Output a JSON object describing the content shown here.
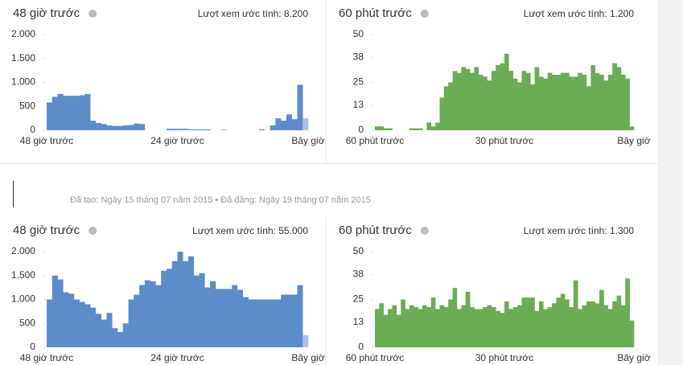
{
  "chart_data": [
    {
      "type": "bar",
      "title": "48 giờ trước",
      "subtitle": "Lượt xem ước tính: 8.200",
      "x_labels": [
        "48 giờ trước",
        "24 giờ trước",
        "Bây giờ"
      ],
      "color": "#5d8ccb",
      "last_color": "#a8c3e8",
      "ylim": [
        0,
        2000
      ],
      "yticks": [
        0,
        500,
        {
          "value": 1000,
          "label": "1.000"
        },
        {
          "value": 1500,
          "label": "1.500"
        },
        {
          "value": 2000,
          "label": "2.000"
        }
      ],
      "values": [
        580,
        700,
        760,
        720,
        720,
        720,
        730,
        760,
        200,
        150,
        130,
        100,
        90,
        90,
        100,
        110,
        140,
        130,
        0,
        0,
        0,
        0,
        30,
        30,
        30,
        30,
        20,
        20,
        20,
        20,
        0,
        0,
        10,
        0,
        0,
        0,
        0,
        0,
        0,
        20,
        0,
        100,
        250,
        200,
        330,
        230,
        950,
        250
      ]
    },
    {
      "type": "bar",
      "title": "60 phút trước",
      "subtitle": "Lượt xem ước tính: 1.200",
      "x_labels": [
        "60 phút trước",
        "30 phút trước",
        "Bây giờ"
      ],
      "color": "#6aad55",
      "ylim": [
        0,
        50
      ],
      "yticks": [
        0,
        13,
        25,
        38,
        50
      ],
      "values": [
        2,
        2,
        1,
        1,
        0,
        0,
        0,
        0,
        1,
        1,
        1,
        0,
        4,
        2,
        4,
        17,
        23,
        25,
        31,
        30,
        33,
        32,
        30,
        33,
        29,
        28,
        26,
        31,
        34,
        35,
        40,
        31,
        27,
        25,
        31,
        30,
        24,
        33,
        28,
        27,
        30,
        29,
        29,
        30,
        30,
        28,
        28,
        30,
        29,
        23,
        34,
        30,
        29,
        26,
        29,
        35,
        33,
        29,
        27,
        2
      ]
    },
    {
      "type": "bar",
      "title": "48 giờ trước",
      "subtitle": "Lượt xem ước tính: 55.000",
      "x_labels": [
        "48 giờ trước",
        "24 giờ trước",
        "Bây giờ"
      ],
      "color": "#5d8ccb",
      "last_color": "#a8c3e8",
      "ylim": [
        0,
        2000
      ],
      "yticks": [
        0,
        500,
        {
          "value": 1000,
          "label": "1.000"
        },
        {
          "value": 1500,
          "label": "1.500"
        },
        {
          "value": 2000,
          "label": "2.000"
        }
      ],
      "values": [
        1000,
        1500,
        1420,
        1150,
        1120,
        1000,
        950,
        900,
        830,
        700,
        580,
        720,
        400,
        320,
        500,
        1000,
        1100,
        1300,
        1400,
        1380,
        1300,
        1600,
        1640,
        1800,
        2000,
        1800,
        1900,
        1500,
        1550,
        1250,
        1380,
        1220,
        1220,
        1220,
        1300,
        1200,
        1050,
        1000,
        1000,
        1000,
        1000,
        1000,
        1000,
        1100,
        1100,
        1100,
        1300,
        250
      ]
    },
    {
      "type": "bar",
      "title": "60 phút trước",
      "subtitle": "Lượt xem ước tính: 1.300",
      "x_labels": [
        "60 phút trước",
        "30 phút trước",
        "Bây giờ"
      ],
      "color": "#6aad55",
      "ylim": [
        0,
        50
      ],
      "yticks": [
        0,
        13,
        25,
        38,
        50
      ],
      "values": [
        20,
        23,
        17,
        20,
        22,
        17,
        25,
        20,
        22,
        21,
        20,
        22,
        21,
        26,
        20,
        22,
        21,
        25,
        31,
        20,
        22,
        29,
        21,
        20,
        20,
        21,
        22,
        21,
        19,
        18,
        24,
        20,
        21,
        22,
        26,
        26,
        26,
        19,
        24,
        20,
        21,
        23,
        26,
        28,
        25,
        21,
        35,
        20,
        22,
        24,
        24,
        23,
        30,
        22,
        20,
        24,
        27,
        22,
        36,
        14
      ]
    }
  ],
  "meta": "Đã tạo: Ngày 15 tháng 07 năm 2015 • Đã đăng: Ngày 19 tháng 07 năm 2015"
}
